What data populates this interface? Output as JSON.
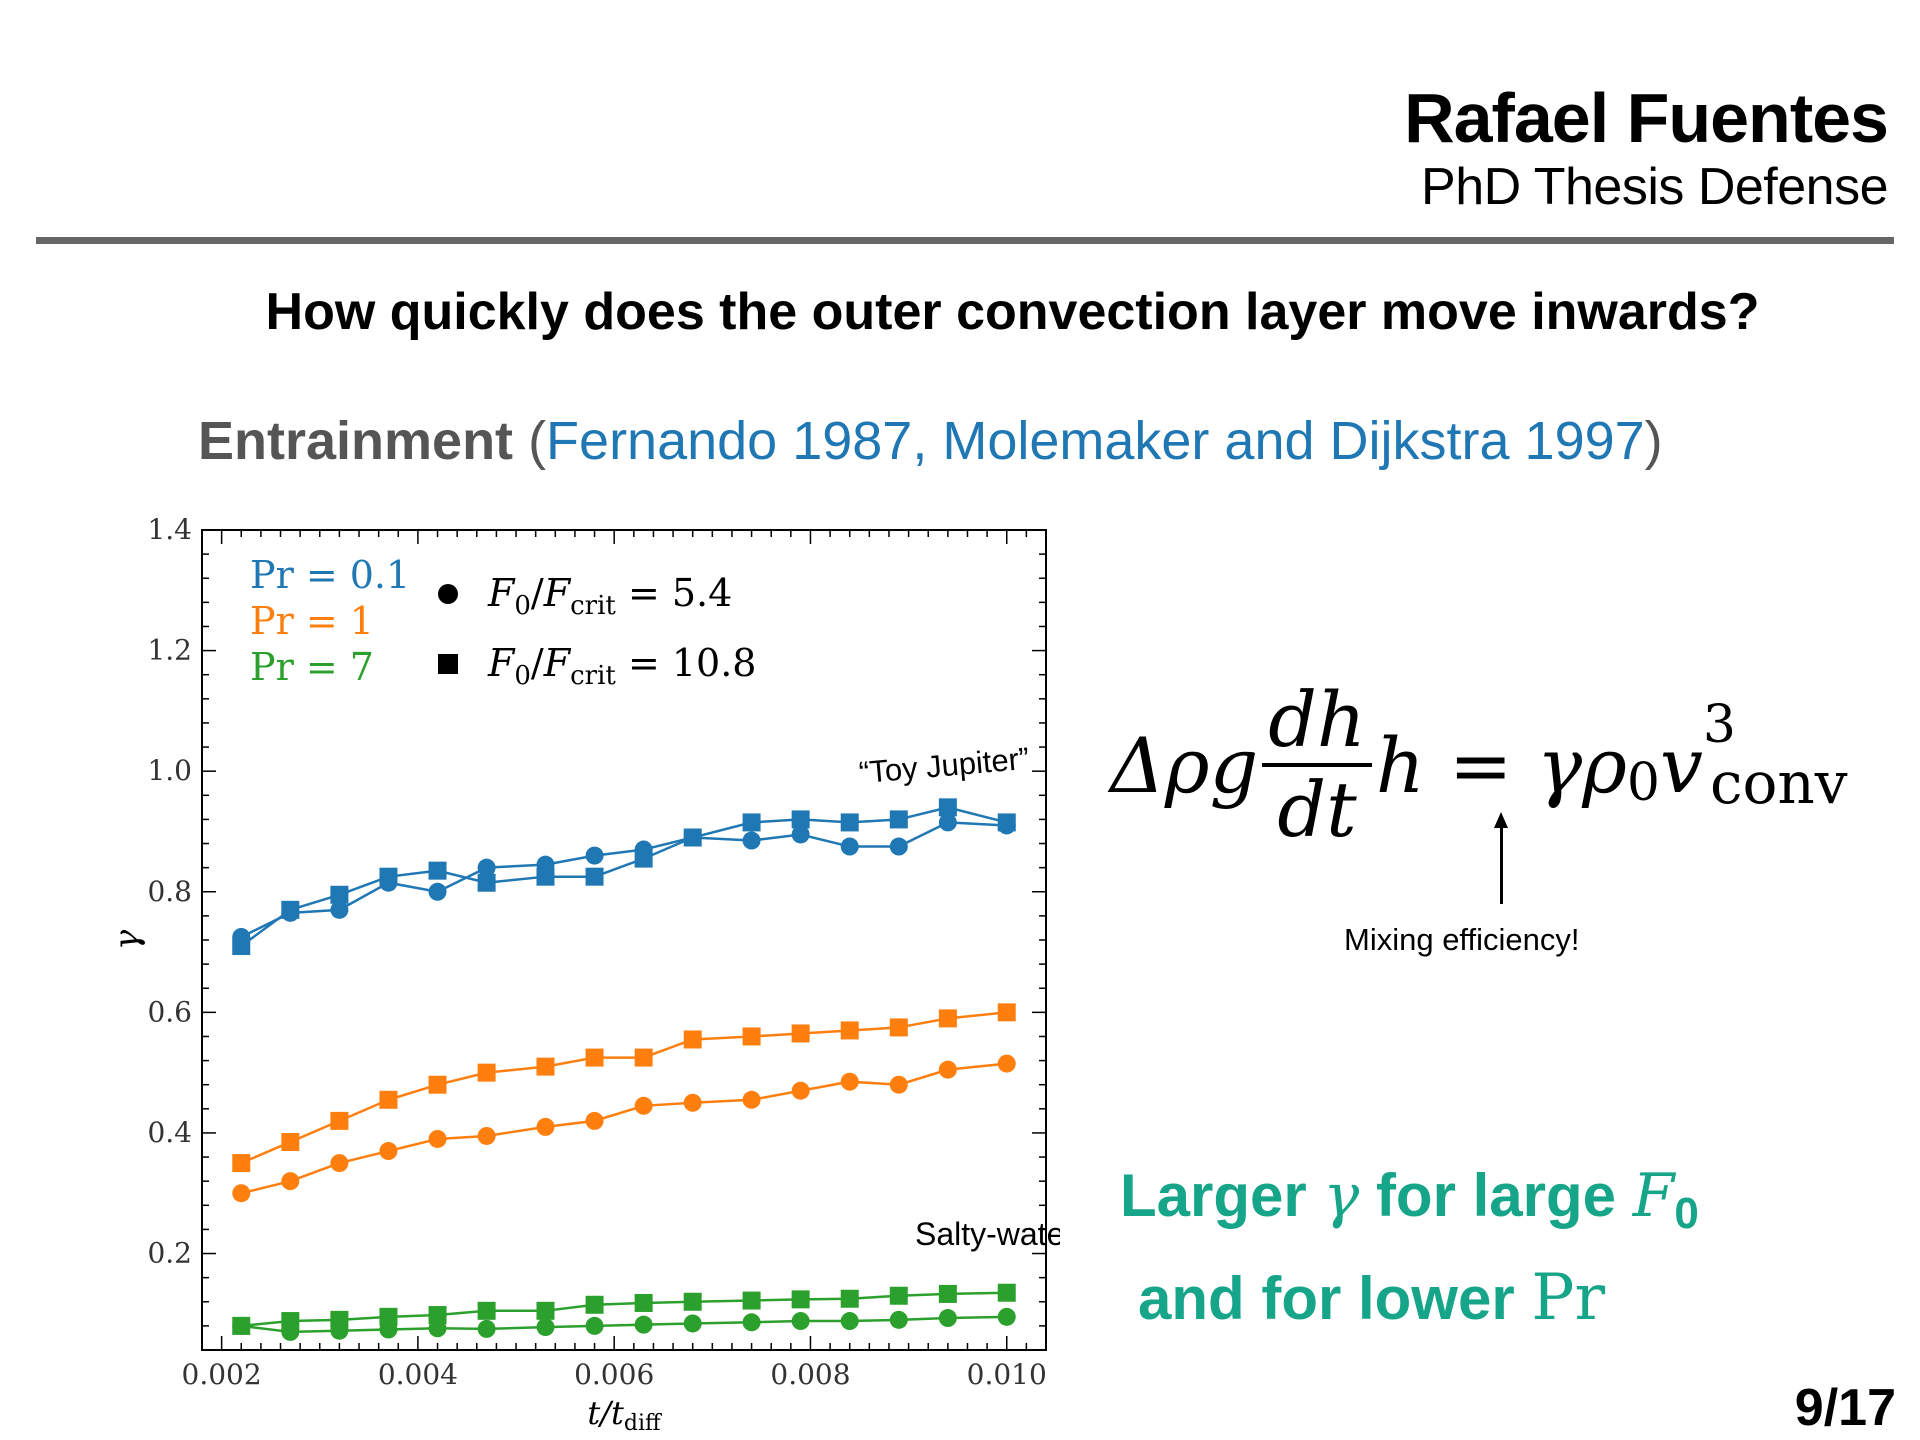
{
  "header": {
    "author": "Rafael Fuentes",
    "subtitle": "PhD Thesis Defense"
  },
  "question": "How quickly does the outer convection layer move inwards?",
  "entrainment": {
    "label": "Entrainment",
    "open_paren": "(",
    "refs": "Fernando 1987, Molemaker and Dijkstra 1997",
    "close_paren": ")"
  },
  "equation": {
    "left": "Δρg",
    "num": "dh",
    "den": "dt",
    "mid": "h = γρ",
    "rho_sub": "0",
    "v": "v",
    "v_sup": "3",
    "v_sub": "conv"
  },
  "annotation": "Mixing efficiency!",
  "conclusion": {
    "l1_pre": "Larger ",
    "l1_gamma": "γ",
    "l1_mid": " for large ",
    "l1_F": "F",
    "l1_Fsub": "0",
    "l2_pre": "and for lower ",
    "l2_Pr": "Pr"
  },
  "page": "9/17",
  "colors": {
    "blue": "#1f77b4",
    "orange": "#ff7f0e",
    "green": "#2ca02c",
    "conclusion": "#17a589"
  },
  "chart_data": {
    "type": "scatter",
    "xlabel": "t/t_diff",
    "ylabel": "γ",
    "xlim": [
      0.0018,
      0.0104
    ],
    "ylim": [
      0.04,
      1.4
    ],
    "xticks": [
      0.002,
      0.004,
      0.006,
      0.008,
      0.01
    ],
    "xtick_labels": [
      "0.002",
      "0.004",
      "0.006",
      "0.008",
      "0.010"
    ],
    "yticks": [
      0.2,
      0.4,
      0.6,
      0.8,
      1.0,
      1.2,
      1.4
    ],
    "ytick_labels": [
      "0.2",
      "0.4",
      "0.6",
      "0.8",
      "1.0",
      "1.2",
      "1.4"
    ],
    "x": [
      0.0022,
      0.0027,
      0.0032,
      0.0037,
      0.0042,
      0.0047,
      0.0053,
      0.0058,
      0.0063,
      0.0068,
      0.0074,
      0.0079,
      0.0084,
      0.0089,
      0.0094,
      0.01
    ],
    "legend_pr": [
      {
        "label": "Pr = 0.1",
        "color": "#1f77b4"
      },
      {
        "label": "Pr = 1",
        "color": "#ff7f0e"
      },
      {
        "label": "Pr = 7",
        "color": "#2ca02c"
      }
    ],
    "legend_markers": [
      {
        "marker": "circle",
        "label": "F0/Fcrit = 5.4"
      },
      {
        "marker": "square",
        "label": "F0/Fcrit = 10.8"
      }
    ],
    "annotations": [
      {
        "text": "“Toy Jupiter”",
        "x": 0.0075,
        "y": 1.0
      },
      {
        "text": "Salty-water",
        "x": 0.0075,
        "y": 0.2
      }
    ],
    "series": [
      {
        "pr": "0.1",
        "marker": "circle",
        "color": "#1f77b4",
        "values": [
          0.725,
          0.765,
          0.77,
          0.815,
          0.8,
          0.84,
          0.845,
          0.86,
          0.87,
          0.89,
          0.885,
          0.895,
          0.875,
          0.875,
          0.915,
          0.91
        ]
      },
      {
        "pr": "0.1",
        "marker": "square",
        "color": "#1f77b4",
        "values": [
          0.71,
          0.77,
          0.795,
          0.825,
          0.835,
          0.815,
          0.825,
          0.825,
          0.855,
          0.89,
          0.915,
          0.92,
          0.915,
          0.92,
          0.94,
          0.915
        ]
      },
      {
        "pr": "1",
        "marker": "circle",
        "color": "#ff7f0e",
        "values": [
          0.3,
          0.32,
          0.35,
          0.37,
          0.39,
          0.395,
          0.41,
          0.42,
          0.445,
          0.45,
          0.455,
          0.47,
          0.485,
          0.48,
          0.505,
          0.515
        ]
      },
      {
        "pr": "1",
        "marker": "square",
        "color": "#ff7f0e",
        "values": [
          0.35,
          0.385,
          0.42,
          0.455,
          0.48,
          0.5,
          0.51,
          0.525,
          0.525,
          0.555,
          0.56,
          0.565,
          0.57,
          0.575,
          0.59,
          0.6
        ]
      },
      {
        "pr": "7",
        "marker": "circle",
        "color": "#2ca02c",
        "values": [
          0.08,
          0.07,
          0.072,
          0.074,
          0.076,
          0.075,
          0.078,
          0.08,
          0.082,
          0.084,
          0.086,
          0.088,
          0.088,
          0.09,
          0.093,
          0.095
        ]
      },
      {
        "pr": "7",
        "marker": "square",
        "color": "#2ca02c",
        "values": [
          0.08,
          0.088,
          0.09,
          0.095,
          0.098,
          0.105,
          0.105,
          0.115,
          0.118,
          0.12,
          0.122,
          0.124,
          0.125,
          0.13,
          0.133,
          0.135
        ]
      }
    ]
  }
}
